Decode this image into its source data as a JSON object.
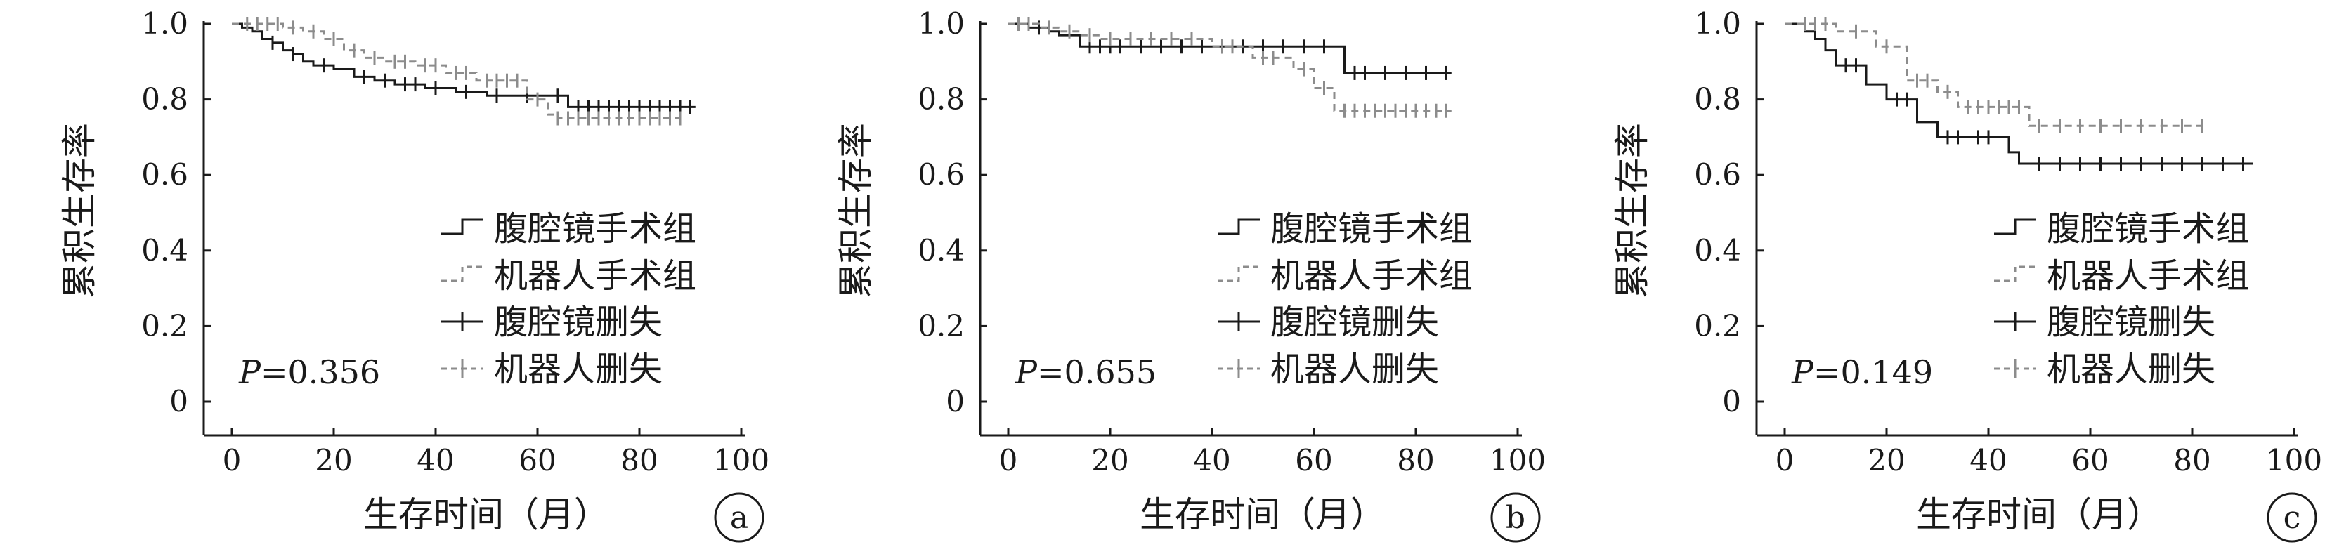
{
  "colors": {
    "laparoscopic": "#1a1a1a",
    "robotic": "#8c8c8c",
    "axis": "#1a1a1a"
  },
  "legend_labels": {
    "laparoscopic_group": "腹腔镜手术组",
    "robotic_group": "机器人手术组",
    "laparoscopic_censored": "腹腔镜删失",
    "robotic_censored": "机器人删失"
  },
  "chart_data": [
    {
      "type": "line",
      "panel_label": "a",
      "xlabel": "生存时间（月）",
      "ylabel": "累积生存率",
      "xlim": [
        0,
        100
      ],
      "ylim": [
        0,
        1.0
      ],
      "x_ticks": [
        "0",
        "20",
        "40",
        "60",
        "80",
        "100"
      ],
      "y_ticks": [
        "0",
        "0.2",
        "0.4",
        "0.6",
        "0.8",
        "1.0"
      ],
      "p_value_prefix": "P",
      "p_value_text": "=0.356",
      "series": [
        {
          "name": "腹腔镜手术组",
          "step_x": [
            0,
            2,
            4,
            6,
            8,
            10,
            12,
            14,
            16,
            20,
            24,
            28,
            32,
            38,
            44,
            50,
            56,
            62,
            66,
            91
          ],
          "step_y": [
            1.0,
            0.99,
            0.98,
            0.96,
            0.95,
            0.93,
            0.92,
            0.9,
            0.89,
            0.88,
            0.86,
            0.85,
            0.84,
            0.83,
            0.82,
            0.81,
            0.81,
            0.81,
            0.78,
            0.78
          ],
          "censored_x": [
            8,
            12,
            18,
            26,
            30,
            34,
            36,
            40,
            46,
            52,
            58,
            64,
            68,
            70,
            72,
            74,
            76,
            78,
            80,
            82,
            84,
            86,
            88,
            90
          ],
          "censored_y": [
            0.95,
            0.92,
            0.89,
            0.86,
            0.85,
            0.84,
            0.84,
            0.83,
            0.82,
            0.81,
            0.81,
            0.81,
            0.78,
            0.78,
            0.78,
            0.78,
            0.78,
            0.78,
            0.78,
            0.78,
            0.78,
            0.78,
            0.78,
            0.78
          ]
        },
        {
          "name": "机器人手术组",
          "step_x": [
            0,
            10,
            14,
            18,
            22,
            26,
            30,
            36,
            42,
            48,
            58,
            62,
            64,
            88
          ],
          "step_y": [
            1.0,
            0.99,
            0.98,
            0.96,
            0.93,
            0.91,
            0.9,
            0.89,
            0.87,
            0.85,
            0.8,
            0.76,
            0.75,
            0.75
          ],
          "censored_x": [
            3,
            5,
            7,
            9,
            12,
            16,
            20,
            24,
            28,
            32,
            34,
            38,
            40,
            44,
            46,
            50,
            52,
            54,
            56,
            60,
            64,
            66,
            68,
            70,
            72,
            74,
            76,
            78,
            80,
            82,
            84,
            86,
            88
          ],
          "censored_y": [
            1.0,
            1.0,
            1.0,
            1.0,
            0.99,
            0.98,
            0.96,
            0.93,
            0.91,
            0.9,
            0.9,
            0.89,
            0.89,
            0.87,
            0.87,
            0.85,
            0.85,
            0.85,
            0.85,
            0.8,
            0.75,
            0.75,
            0.75,
            0.75,
            0.75,
            0.75,
            0.75,
            0.75,
            0.75,
            0.75,
            0.75,
            0.75,
            0.75
          ]
        }
      ]
    },
    {
      "type": "line",
      "panel_label": "b",
      "xlabel": "生存时间（月）",
      "ylabel": "累积生存率",
      "xlim": [
        0,
        100
      ],
      "ylim": [
        0,
        1.0
      ],
      "x_ticks": [
        "0",
        "20",
        "40",
        "60",
        "80",
        "100"
      ],
      "y_ticks": [
        "0",
        "0.2",
        "0.4",
        "0.6",
        "0.8",
        "1.0"
      ],
      "p_value_prefix": "P",
      "p_value_text": "=0.655",
      "series": [
        {
          "name": "腹腔镜手术组",
          "step_x": [
            0,
            4,
            8,
            10,
            14,
            66,
            87
          ],
          "step_y": [
            1.0,
            0.99,
            0.98,
            0.97,
            0.94,
            0.87,
            0.87
          ],
          "censored_x": [
            6,
            16,
            18,
            20,
            22,
            26,
            30,
            34,
            38,
            42,
            46,
            50,
            54,
            58,
            62,
            68,
            70,
            74,
            78,
            82,
            86
          ],
          "censored_y": [
            0.99,
            0.94,
            0.94,
            0.94,
            0.94,
            0.94,
            0.94,
            0.94,
            0.94,
            0.94,
            0.94,
            0.94,
            0.94,
            0.94,
            0.94,
            0.87,
            0.87,
            0.87,
            0.87,
            0.87,
            0.87
          ]
        },
        {
          "name": "机器人手术组",
          "step_x": [
            0,
            6,
            10,
            14,
            18,
            40,
            48,
            56,
            60,
            64,
            87
          ],
          "step_y": [
            1.0,
            0.99,
            0.98,
            0.97,
            0.96,
            0.94,
            0.91,
            0.88,
            0.83,
            0.77,
            0.77
          ],
          "censored_x": [
            2,
            4,
            8,
            12,
            16,
            20,
            24,
            28,
            32,
            36,
            42,
            44,
            50,
            52,
            58,
            62,
            66,
            68,
            70,
            72,
            74,
            76,
            78,
            80,
            82,
            84,
            86
          ],
          "censored_y": [
            1.0,
            1.0,
            0.99,
            0.98,
            0.97,
            0.96,
            0.96,
            0.96,
            0.96,
            0.96,
            0.94,
            0.94,
            0.91,
            0.91,
            0.88,
            0.83,
            0.77,
            0.77,
            0.77,
            0.77,
            0.77,
            0.77,
            0.77,
            0.77,
            0.77,
            0.77,
            0.77
          ]
        }
      ]
    },
    {
      "type": "line",
      "panel_label": "c",
      "xlabel": "生存时间（月）",
      "ylabel": "累积生存率",
      "xlim": [
        0,
        100
      ],
      "ylim": [
        0,
        1.0
      ],
      "x_ticks": [
        "0",
        "20",
        "40",
        "60",
        "80",
        "100"
      ],
      "y_ticks": [
        "0",
        "0.2",
        "0.4",
        "0.6",
        "0.8",
        "1.0"
      ],
      "p_value_prefix": "P",
      "p_value_text": "=0.149",
      "series": [
        {
          "name": "腹腔镜手术组",
          "step_x": [
            0,
            4,
            6,
            8,
            10,
            16,
            20,
            26,
            30,
            44,
            46,
            92
          ],
          "step_y": [
            1.0,
            0.98,
            0.96,
            0.93,
            0.89,
            0.84,
            0.8,
            0.74,
            0.7,
            0.66,
            0.63,
            0.63
          ],
          "censored_x": [
            12,
            14,
            22,
            24,
            32,
            34,
            38,
            40,
            50,
            54,
            58,
            62,
            66,
            70,
            74,
            78,
            82,
            86,
            90
          ],
          "censored_y": [
            0.89,
            0.89,
            0.8,
            0.8,
            0.7,
            0.7,
            0.7,
            0.7,
            0.63,
            0.63,
            0.63,
            0.63,
            0.63,
            0.63,
            0.63,
            0.63,
            0.63,
            0.63,
            0.63
          ]
        },
        {
          "name": "机器人手术组",
          "step_x": [
            0,
            10,
            18,
            24,
            30,
            34,
            48,
            82
          ],
          "step_y": [
            1.0,
            0.98,
            0.94,
            0.85,
            0.82,
            0.78,
            0.73,
            0.73
          ],
          "censored_x": [
            4,
            6,
            8,
            14,
            20,
            26,
            28,
            32,
            36,
            38,
            40,
            42,
            44,
            46,
            50,
            54,
            58,
            62,
            66,
            70,
            74,
            78,
            82
          ],
          "censored_y": [
            1.0,
            1.0,
            1.0,
            0.98,
            0.94,
            0.85,
            0.85,
            0.82,
            0.78,
            0.78,
            0.78,
            0.78,
            0.78,
            0.78,
            0.73,
            0.73,
            0.73,
            0.73,
            0.73,
            0.73,
            0.73,
            0.73,
            0.73
          ]
        }
      ]
    }
  ]
}
